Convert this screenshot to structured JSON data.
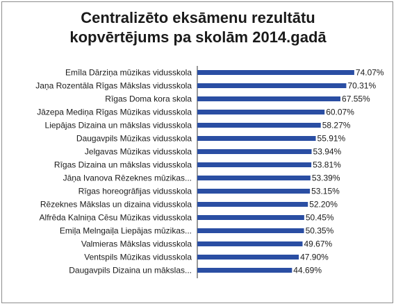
{
  "chart_data": {
    "type": "bar",
    "orientation": "horizontal",
    "title": "Centralizēto eksāmenu rezultātu\nkopvērtējums pa skolām 2014.gadā",
    "categories": [
      "Emīla Dārziņa mūzikas vidusskola",
      "Jaņa Rozentāla Rīgas Mākslas vidusskola",
      "Rīgas Doma kora skola",
      "Jāzepa Mediņa Rīgas Mūzikas vidusskola",
      "Liepājas Dizaina un mākslas vidusskola",
      "Daugavpils Mūzikas vidusskola",
      "Jelgavas Mūzikas vidusskola",
      "Rīgas Dizaina un mākslas vidusskola",
      "Jāņa Ivanova Rēzeknes mūzikas...",
      "Rīgas horeogrāfijas vidusskola",
      "Rēzeknes Mākslas un dizaina vidusskola",
      "Alfrēda Kalniņa Cēsu Mūzikas vidusskola",
      "Emiļa Melngaiļa Liepājas mūzikas...",
      "Valmieras Mākslas vidusskola",
      "Ventspils Mūzikas vidusskola",
      "Daugavpils Dizaina un mākslas..."
    ],
    "values": [
      74.07,
      70.31,
      67.55,
      60.07,
      58.27,
      55.91,
      53.94,
      53.81,
      53.39,
      53.15,
      52.2,
      50.45,
      50.35,
      49.67,
      47.9,
      44.69
    ],
    "value_labels": [
      "74.07%",
      "70.31%",
      "67.55%",
      "60.07%",
      "58.27%",
      "55.91%",
      "53.94%",
      "53.81%",
      "53.39%",
      "53.15%",
      "52.20%",
      "50.45%",
      "50.35%",
      "49.67%",
      "47.90%",
      "44.69%"
    ],
    "value_unit": "%",
    "xlim": [
      0,
      80
    ],
    "grid": false,
    "legend": "none",
    "bar_color": "#2a4ea3"
  }
}
